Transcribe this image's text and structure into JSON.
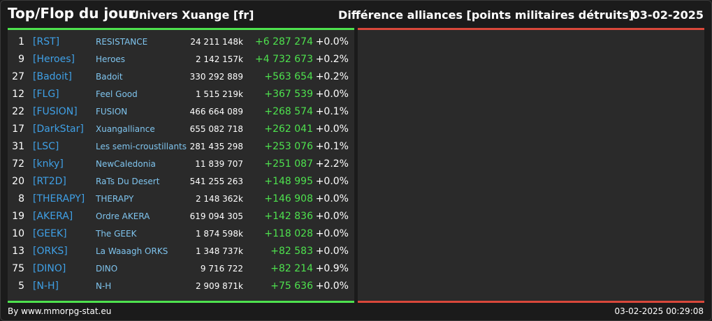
{
  "header": {
    "title": "Top/Flop du jour",
    "universe": "Univers Xuange [fr]",
    "ranking": "Différence alliances [points militaires détruits]",
    "date": "03-02-2025"
  },
  "colors": {
    "top_line": "#4ee24e",
    "flop_line": "#d9483b",
    "tag": "#3fa0e6",
    "name": "#7fc4ee",
    "positive": "#4ee24e"
  },
  "rows": [
    {
      "rank": "1",
      "tag": "[RST]",
      "name": "RESISTANCE",
      "points": "24 211 148k",
      "diff": "+6 287 274",
      "pct": "+0.0%"
    },
    {
      "rank": "9",
      "tag": "[Heroes]",
      "name": "Heroes",
      "points": "2 142 157k",
      "diff": "+4 732 673",
      "pct": "+0.2%"
    },
    {
      "rank": "27",
      "tag": "[Badoit]",
      "name": "Badoit",
      "points": "330 292 889",
      "diff": "+563 654",
      "pct": "+0.2%"
    },
    {
      "rank": "12",
      "tag": "[FLG]",
      "name": "Feel Good",
      "points": "1 515 219k",
      "diff": "+367 539",
      "pct": "+0.0%"
    },
    {
      "rank": "22",
      "tag": "[FUSION]",
      "name": "FUSION",
      "points": "466 664 089",
      "diff": "+268 574",
      "pct": "+0.1%"
    },
    {
      "rank": "17",
      "tag": "[DarkStar]",
      "name": "Xuangalliance",
      "points": "655 082 718",
      "diff": "+262 041",
      "pct": "+0.0%"
    },
    {
      "rank": "31",
      "tag": "[LSC]",
      "name": "Les semi-croustillants",
      "points": "281 435 298",
      "diff": "+253 076",
      "pct": "+0.1%"
    },
    {
      "rank": "72",
      "tag": "[knky]",
      "name": "NewCaledonia",
      "points": "11 839 707",
      "diff": "+251 087",
      "pct": "+2.2%"
    },
    {
      "rank": "20",
      "tag": "[RT2D]",
      "name": "RaTs Du Desert",
      "points": "541 255 263",
      "diff": "+148 995",
      "pct": "+0.0%"
    },
    {
      "rank": "8",
      "tag": "[THERAPY]",
      "name": "THERAPY",
      "points": "2 148 362k",
      "diff": "+146 908",
      "pct": "+0.0%"
    },
    {
      "rank": "19",
      "tag": "[AKERA]",
      "name": "Ordre AKERA",
      "points": "619 094 305",
      "diff": "+142 836",
      "pct": "+0.0%"
    },
    {
      "rank": "10",
      "tag": "[GEEK]",
      "name": "The GEEK",
      "points": "1 874 598k",
      "diff": "+118 028",
      "pct": "+0.0%"
    },
    {
      "rank": "13",
      "tag": "[ORKS]",
      "name": "La Waaagh ORKS",
      "points": "1 348 737k",
      "diff": "+82 583",
      "pct": "+0.0%"
    },
    {
      "rank": "75",
      "tag": "[DINO]",
      "name": "DINO",
      "points": "9 716 722",
      "diff": "+82 214",
      "pct": "+0.9%"
    },
    {
      "rank": "5",
      "tag": "[N-H]",
      "name": "N-H",
      "points": "2 909 871k",
      "diff": "+75 636",
      "pct": "+0.0%"
    }
  ],
  "footer": {
    "credit": "By www.mmorpg-stat.eu",
    "timestamp": "03-02-2025 00:29:08"
  }
}
